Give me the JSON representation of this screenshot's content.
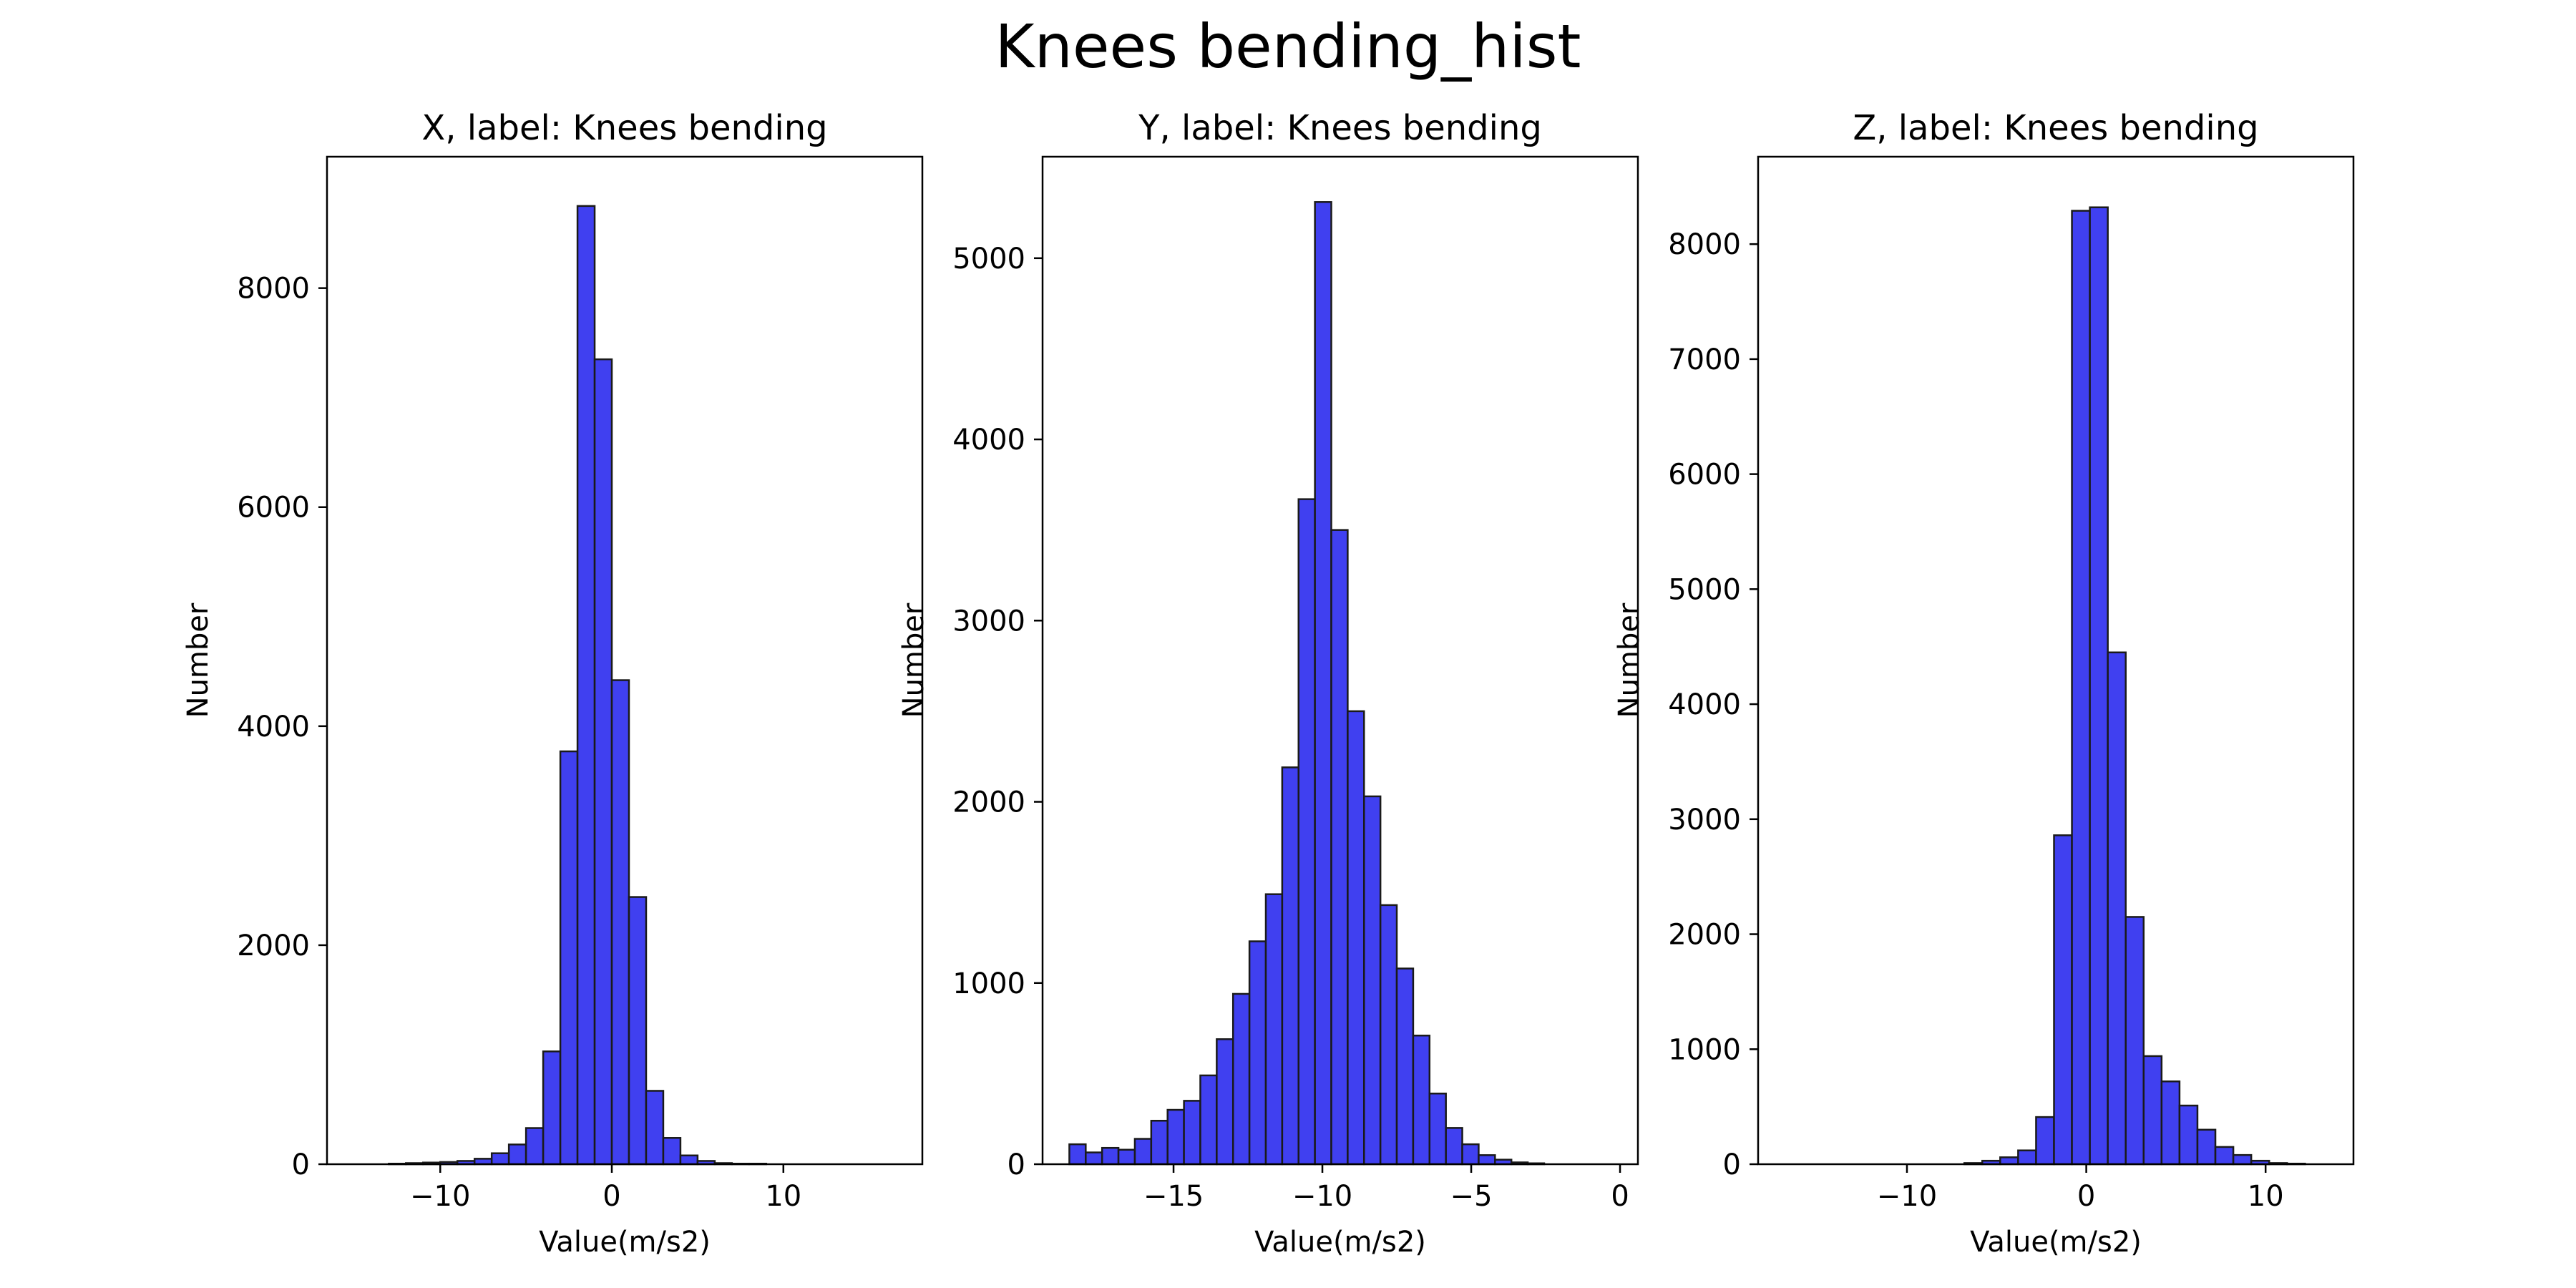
{
  "figure": {
    "title": "Knees bending_hist"
  },
  "colors": {
    "bar_fill": "#4040f0",
    "bar_edge": "#1a1a1a",
    "text": "#000000",
    "frame": "#000000",
    "background": "#ffffff"
  },
  "chart_data": [
    {
      "type": "bar",
      "title": "X, label: Knees bending",
      "xlabel": "Value(m/s2)",
      "ylabel": "Number",
      "xlim": [
        -16.6,
        18.1
      ],
      "ylim": [
        0,
        9200
      ],
      "xticks": [
        -10,
        0,
        10
      ],
      "xtick_labels": [
        "−10",
        "0",
        "10"
      ],
      "yticks": [
        0,
        2000,
        4000,
        6000,
        8000
      ],
      "ytick_labels": [
        "0",
        "2000",
        "4000",
        "6000",
        "8000"
      ],
      "bin_edges": [
        -15.0,
        -14.0,
        -13.0,
        -12.0,
        -11.0,
        -10.0,
        -9.0,
        -8.0,
        -7.0,
        -6.0,
        -5.0,
        -4.0,
        -3.0,
        -2.0,
        -1.0,
        0.0,
        1.0,
        2.0,
        3.0,
        4.0,
        5.0,
        6.0,
        7.0,
        8.0,
        9.0,
        10.0,
        11.0,
        12.0,
        13.0,
        14.0,
        15.0
      ],
      "counts": [
        0,
        0,
        5,
        10,
        15,
        20,
        30,
        50,
        100,
        180,
        330,
        1030,
        3770,
        8750,
        7350,
        4420,
        2440,
        670,
        240,
        80,
        30,
        10,
        5,
        5,
        0,
        0,
        0,
        0,
        0,
        0
      ],
      "grid": false,
      "legend": "none"
    },
    {
      "type": "bar",
      "title": "Y, label: Knees bending",
      "xlabel": "Value(m/s2)",
      "ylabel": "Number",
      "xlim": [
        -19.4,
        0.6
      ],
      "ylim": [
        0,
        5560
      ],
      "xticks": [
        -15,
        -10,
        -5,
        0
      ],
      "xtick_labels": [
        "−15",
        "−10",
        "−5",
        "0"
      ],
      "yticks": [
        0,
        1000,
        2000,
        3000,
        4000,
        5000
      ],
      "ytick_labels": [
        "0",
        "1000",
        "2000",
        "3000",
        "4000",
        "5000"
      ],
      "bin_edges": [
        -18.5,
        -17.95,
        -17.4,
        -16.85,
        -16.3,
        -15.75,
        -15.2,
        -14.65,
        -14.1,
        -13.55,
        -13.0,
        -12.45,
        -11.9,
        -11.35,
        -10.8,
        -10.25,
        -9.7,
        -9.15,
        -8.6,
        -8.05,
        -7.5,
        -6.95,
        -6.4,
        -5.85,
        -5.3,
        -4.75,
        -4.2,
        -3.65,
        -3.1,
        -2.55,
        -2.0
      ],
      "counts": [
        110,
        65,
        90,
        80,
        140,
        240,
        300,
        350,
        490,
        690,
        940,
        1230,
        1490,
        2190,
        3670,
        5310,
        3500,
        2500,
        2030,
        1430,
        1080,
        710,
        390,
        200,
        110,
        50,
        25,
        10,
        5,
        0
      ],
      "grid": false,
      "legend": "none"
    },
    {
      "type": "bar",
      "title": "Z, label: Knees bending",
      "xlabel": "Value(m/s2)",
      "ylabel": "Number",
      "xlim": [
        -18.3,
        14.9
      ],
      "ylim": [
        0,
        8760
      ],
      "xticks": [
        -10,
        0,
        10
      ],
      "xtick_labels": [
        "−10",
        "0",
        "10"
      ],
      "yticks": [
        0,
        1000,
        2000,
        3000,
        4000,
        5000,
        6000,
        7000,
        8000
      ],
      "ytick_labels": [
        "0",
        "1000",
        "2000",
        "3000",
        "4000",
        "5000",
        "6000",
        "7000",
        "8000"
      ],
      "bin_edges": [
        -16.8,
        -15.8,
        -14.8,
        -13.8,
        -12.8,
        -11.8,
        -10.8,
        -9.8,
        -8.8,
        -7.8,
        -6.8,
        -5.8,
        -4.8,
        -3.8,
        -2.8,
        -1.8,
        -0.8,
        0.2,
        1.2,
        2.2,
        3.2,
        4.2,
        5.2,
        6.2,
        7.2,
        8.2,
        9.2,
        10.2,
        11.2,
        12.2,
        13.2
      ],
      "counts": [
        0,
        0,
        0,
        0,
        0,
        0,
        0,
        0,
        0,
        0,
        10,
        30,
        60,
        120,
        410,
        2860,
        8290,
        8320,
        4450,
        2150,
        940,
        720,
        510,
        300,
        150,
        80,
        30,
        10,
        5,
        0
      ],
      "grid": false,
      "legend": "none"
    }
  ]
}
